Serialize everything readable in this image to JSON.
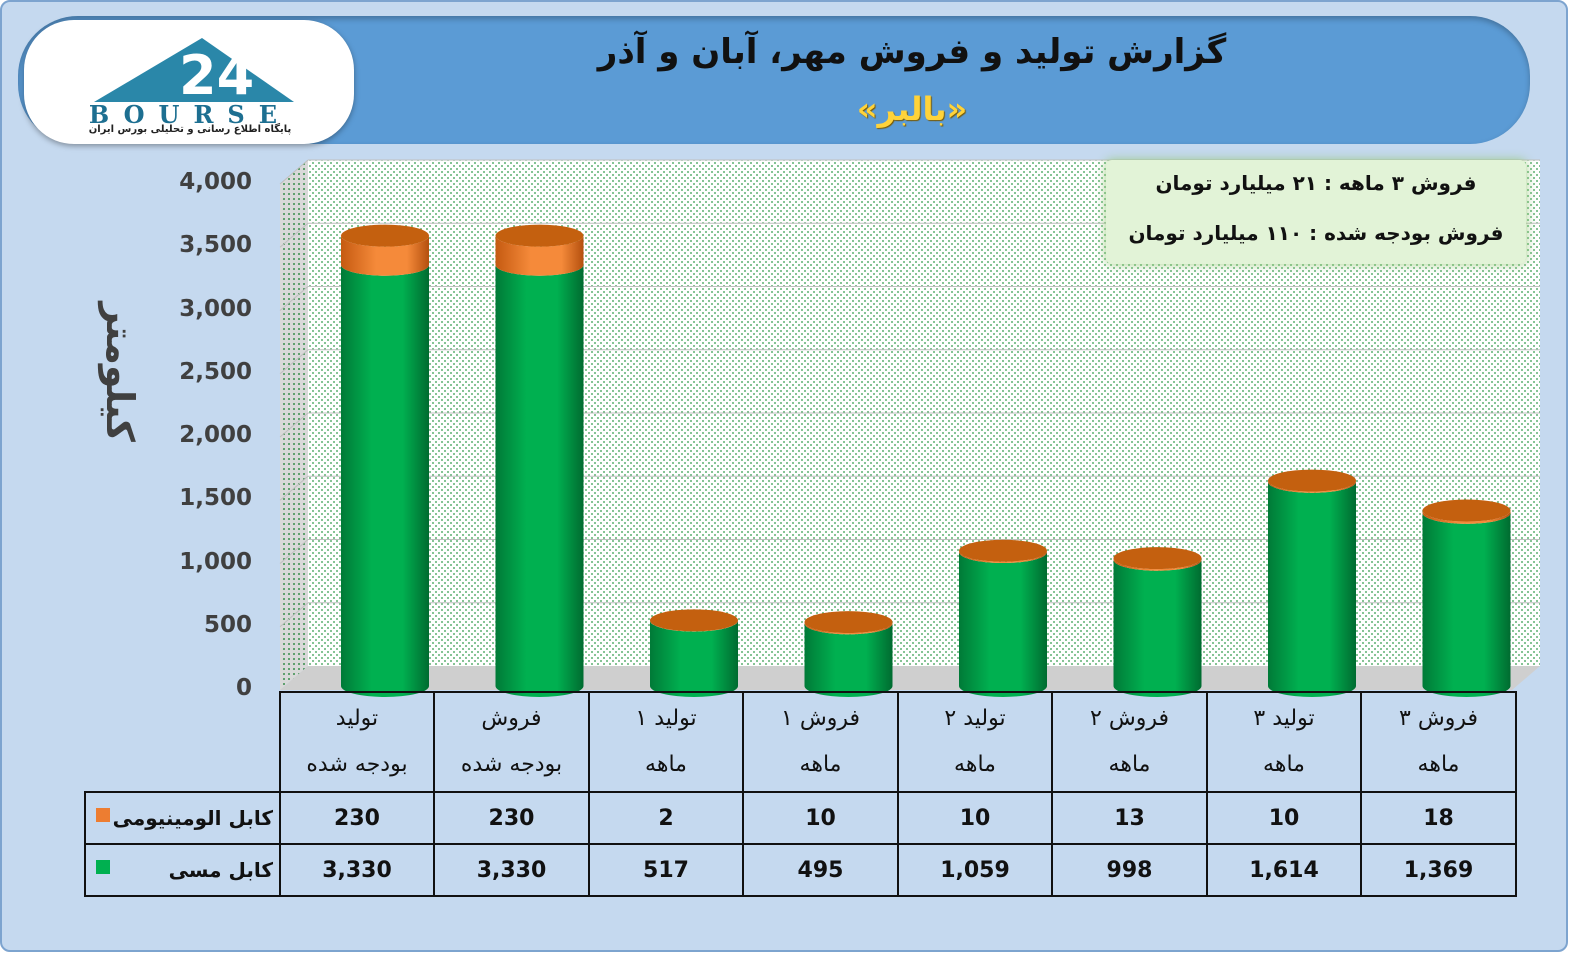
{
  "header": {
    "title": "گزارش تولید و فروش مهر، آبان و آذر",
    "subtitle": "«بالبر»"
  },
  "logo": {
    "wordmark": "BOURSE",
    "number": "24",
    "tagline": "پایگاه اطلاع رسانی و تحلیلی بورس ایران"
  },
  "info_box": {
    "line1": "فروش ۳ ماهه : ۲۱ میلیارد تومان",
    "line2": "فروش بودجه شده : ۱۱۰ میلیارد تومان"
  },
  "colors": {
    "copper": "#00b050",
    "aluminum": "#ed7d31"
  },
  "chart_data": {
    "type": "bar",
    "stacked": true,
    "ylabel": "کیلومتر",
    "ylim": [
      0,
      4000
    ],
    "yticks": [
      "0",
      "500",
      "1,000",
      "1,500",
      "2,000",
      "2,500",
      "3,000",
      "3,500",
      "4,000"
    ],
    "categories": [
      [
        "تولید",
        "بودجه شده"
      ],
      [
        "فروش",
        "بودجه شده"
      ],
      [
        "تولید ۱",
        "ماهه"
      ],
      [
        "فروش ۱",
        "ماهه"
      ],
      [
        "تولید ۲",
        "ماهه"
      ],
      [
        "فروش ۲",
        "ماهه"
      ],
      [
        "تولید ۳",
        "ماهه"
      ],
      [
        "فروش ۳",
        "ماهه"
      ]
    ],
    "series": [
      {
        "name": "کابل الومینیومی",
        "values": [
          230,
          230,
          2,
          10,
          10,
          13,
          10,
          18
        ],
        "labels": [
          "230",
          "230",
          "2",
          "10",
          "10",
          "13",
          "10",
          "18"
        ]
      },
      {
        "name": "کابل مسی",
        "values": [
          3330,
          3330,
          517,
          495,
          1059,
          998,
          1614,
          1369
        ],
        "labels": [
          "3,330",
          "3,330",
          "517",
          "495",
          "1,059",
          "998",
          "1,614",
          "1,369"
        ]
      }
    ],
    "grid": true
  }
}
